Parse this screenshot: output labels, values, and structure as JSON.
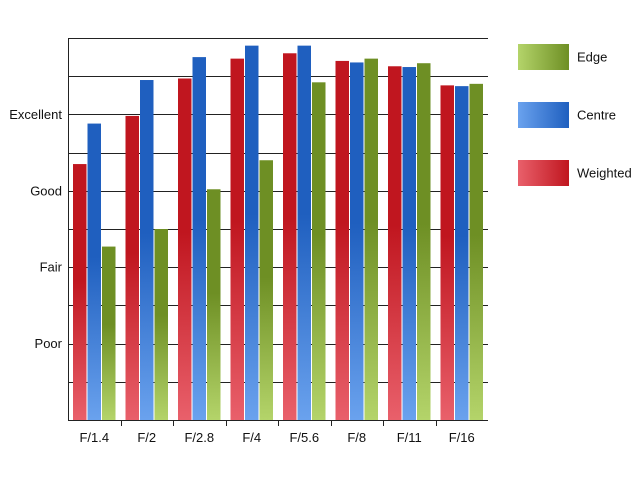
{
  "chart_data": {
    "type": "bar",
    "title": "",
    "xlabel": "",
    "ylabel": "",
    "categories": [
      "F/1.4",
      "F/2",
      "F/2.8",
      "F/4",
      "F/5.6",
      "F/8",
      "F/11",
      "F/16"
    ],
    "y_tick_labels": [
      {
        "value": 1,
        "label": "Poor"
      },
      {
        "value": 2,
        "label": "Fair"
      },
      {
        "value": 3,
        "label": "Good"
      },
      {
        "value": 4,
        "label": "Excellent"
      }
    ],
    "ylim": [
      0,
      5
    ],
    "grid": "horizontal",
    "legend_position": "right",
    "series": [
      {
        "name": "Weighted",
        "color": "#c0161f",
        "color_light": "#e9606b",
        "values": [
          3.35,
          3.98,
          4.47,
          4.73,
          4.8,
          4.7,
          4.63,
          4.38
        ]
      },
      {
        "name": "Centre",
        "color": "#1f5fbf",
        "color_light": "#6aa2ee",
        "values": [
          3.88,
          4.45,
          4.75,
          4.9,
          4.9,
          4.68,
          4.62,
          4.37
        ]
      },
      {
        "name": "Edge",
        "color": "#6e8f24",
        "color_light": "#b4d46a",
        "values": [
          2.27,
          2.5,
          3.02,
          3.4,
          4.42,
          4.73,
          4.67,
          4.4
        ]
      }
    ],
    "legend_order": [
      "Edge",
      "Centre",
      "Weighted"
    ]
  }
}
